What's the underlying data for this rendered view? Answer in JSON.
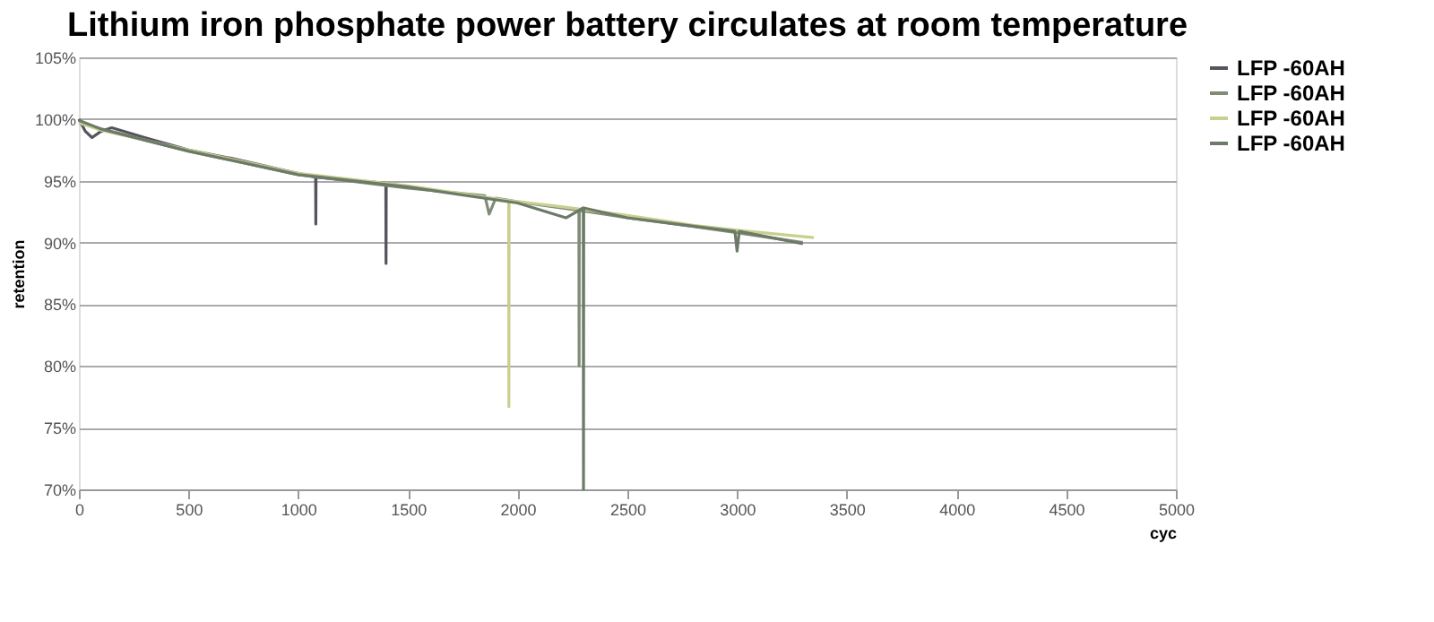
{
  "chart_data": {
    "type": "line",
    "title": "Lithium iron phosphate power battery circulates at room temperature",
    "xlabel": "cyc",
    "ylabel": "retention",
    "xlim": [
      0,
      5000
    ],
    "xticks": [
      0,
      500,
      1000,
      1500,
      2000,
      2500,
      3000,
      3500,
      4000,
      4500,
      {
        "value": 5000,
        "label": "5000"
      }
    ],
    "ylim": [
      70,
      105
    ],
    "yticks": [
      {
        "value": 70,
        "label": "70%"
      },
      {
        "value": 75,
        "label": "75%"
      },
      {
        "value": 80,
        "label": "80%"
      },
      {
        "value": 85,
        "label": "85%"
      },
      {
        "value": 90,
        "label": "90%"
      },
      {
        "value": 95,
        "label": "95%"
      },
      {
        "value": 100,
        "label": "100%"
      },
      {
        "value": 105,
        "label": "105%"
      }
    ],
    "grid": "y",
    "legend": "right",
    "marker": "none",
    "line_style": "solid",
    "series": [
      {
        "name": "LFP -60AH",
        "color": "#55555f",
        "x": [
          0,
          30,
          60,
          100,
          150,
          300,
          500,
          700,
          900,
          1000,
          1079,
          1080,
          1081,
          1200,
          1399,
          1400,
          1401,
          1500
        ],
        "values": [
          100,
          99,
          98.5,
          99,
          99.3,
          98.5,
          97.5,
          96.8,
          96,
          95.6,
          95.3,
          91.5,
          95.3,
          95.1,
          94.8,
          88.3,
          94.8,
          94.5
        ]
      },
      {
        "name": "LFP -60AH",
        "color": "#7f8c78",
        "x": [
          0,
          100,
          500,
          1000,
          1500,
          1850,
          1870,
          1900,
          2000,
          2279,
          2280,
          2281,
          2500,
          2800,
          3000,
          3300
        ],
        "values": [
          99.8,
          99.2,
          97.4,
          95.5,
          94.4,
          93.8,
          92.3,
          93.6,
          93.3,
          92.6,
          80,
          92.6,
          92,
          91.3,
          90.8,
          90
        ]
      },
      {
        "name": "LFP -60AH",
        "color": "#c9cf8e",
        "x": [
          0,
          100,
          500,
          1000,
          1500,
          1959,
          1960,
          1961,
          2200,
          2500,
          2800,
          3000,
          3350
        ],
        "values": [
          99.7,
          99.1,
          97.5,
          95.6,
          94.6,
          93.4,
          76.7,
          93.4,
          92.9,
          92.2,
          91.4,
          91,
          90.4
        ]
      },
      {
        "name": "LFP -60AH",
        "color": "#6b7b68",
        "x": [
          0,
          100,
          500,
          1000,
          1500,
          2000,
          2220,
          2299,
          2300,
          2301,
          2500,
          2990,
          3000,
          3010,
          3300
        ],
        "values": [
          99.9,
          99.2,
          97.4,
          95.5,
          94.5,
          93.2,
          92,
          92.8,
          70,
          92.8,
          92,
          90.9,
          89.3,
          90.9,
          89.9
        ]
      }
    ]
  }
}
